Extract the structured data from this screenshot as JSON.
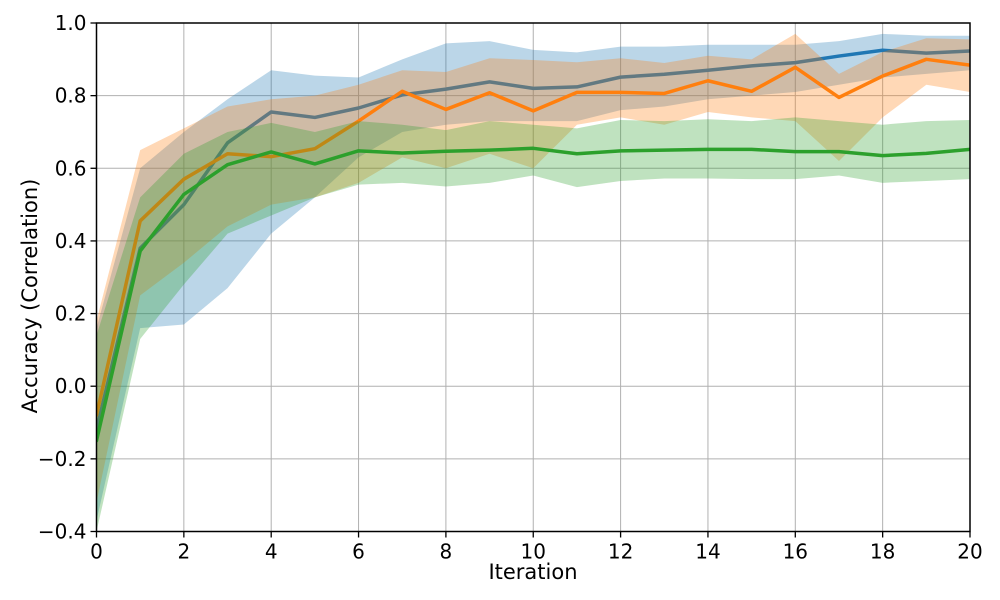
{
  "chart_data": {
    "type": "line",
    "title": "",
    "xlabel": "Iteration",
    "ylabel": "Accuracy (Correlation)",
    "xlim": [
      0,
      20
    ],
    "ylim": [
      -0.4,
      1.0
    ],
    "xticks": [
      0,
      2,
      4,
      6,
      8,
      10,
      12,
      14,
      16,
      18,
      20
    ],
    "yticks": [
      -0.4,
      -0.2,
      0.0,
      0.2,
      0.4,
      0.6,
      0.8,
      1.0
    ],
    "grid": true,
    "legend_position": "none",
    "band_alpha": 0.3,
    "x": [
      0,
      1,
      2,
      3,
      4,
      5,
      6,
      7,
      8,
      9,
      10,
      11,
      12,
      13,
      14,
      15,
      16,
      17,
      18,
      19,
      20
    ],
    "series": [
      {
        "name": "blue",
        "color": "#1f77b4",
        "values": [
          -0.12,
          0.38,
          0.5,
          0.67,
          0.755,
          0.74,
          0.766,
          0.802,
          0.818,
          0.838,
          0.82,
          0.824,
          0.851,
          0.859,
          0.87,
          0.882,
          0.891,
          0.909,
          0.925,
          0.917,
          0.923
        ],
        "band_low": [
          -0.37,
          0.16,
          0.17,
          0.27,
          0.42,
          0.52,
          0.63,
          0.7,
          0.72,
          0.73,
          0.73,
          0.73,
          0.76,
          0.77,
          0.79,
          0.8,
          0.81,
          0.83,
          0.85,
          0.86,
          0.87
        ],
        "band_high": [
          0.16,
          0.6,
          0.7,
          0.79,
          0.87,
          0.855,
          0.85,
          0.9,
          0.944,
          0.95,
          0.926,
          0.919,
          0.935,
          0.935,
          0.94,
          0.94,
          0.94,
          0.95,
          0.97,
          0.965,
          0.965
        ]
      },
      {
        "name": "orange",
        "color": "#ff7f0e",
        "values": [
          -0.08,
          0.455,
          0.57,
          0.64,
          0.632,
          0.654,
          0.73,
          0.812,
          0.762,
          0.808,
          0.758,
          0.809,
          0.809,
          0.806,
          0.841,
          0.812,
          0.878,
          0.795,
          0.854,
          0.9,
          0.884
        ],
        "band_low": [
          -0.32,
          0.25,
          0.34,
          0.44,
          0.5,
          0.52,
          0.56,
          0.63,
          0.6,
          0.64,
          0.6,
          0.72,
          0.74,
          0.72,
          0.755,
          0.74,
          0.73,
          0.62,
          0.74,
          0.83,
          0.81
        ],
        "band_high": [
          0.18,
          0.65,
          0.71,
          0.77,
          0.79,
          0.8,
          0.83,
          0.87,
          0.865,
          0.903,
          0.898,
          0.892,
          0.903,
          0.89,
          0.91,
          0.9,
          0.97,
          0.86,
          0.92,
          0.958,
          0.955
        ]
      },
      {
        "name": "green",
        "color": "#2ca02c",
        "values": [
          -0.15,
          0.372,
          0.528,
          0.61,
          0.645,
          0.612,
          0.648,
          0.642,
          0.647,
          0.65,
          0.655,
          0.64,
          0.648,
          0.65,
          0.652,
          0.652,
          0.646,
          0.646,
          0.635,
          0.641,
          0.652
        ],
        "band_low": [
          -0.4,
          0.13,
          0.28,
          0.42,
          0.47,
          0.52,
          0.555,
          0.56,
          0.55,
          0.56,
          0.58,
          0.548,
          0.565,
          0.572,
          0.572,
          0.57,
          0.57,
          0.58,
          0.56,
          0.565,
          0.57
        ],
        "band_high": [
          0.14,
          0.52,
          0.64,
          0.7,
          0.725,
          0.7,
          0.73,
          0.72,
          0.705,
          0.73,
          0.72,
          0.71,
          0.733,
          0.73,
          0.735,
          0.73,
          0.74,
          0.73,
          0.72,
          0.73,
          0.733
        ]
      }
    ],
    "styles": {
      "background": "#ffffff",
      "grid_color": "#b0b0b0",
      "spine_color": "#000000",
      "tick_color": "#000000",
      "text_color": "#000000"
    }
  }
}
